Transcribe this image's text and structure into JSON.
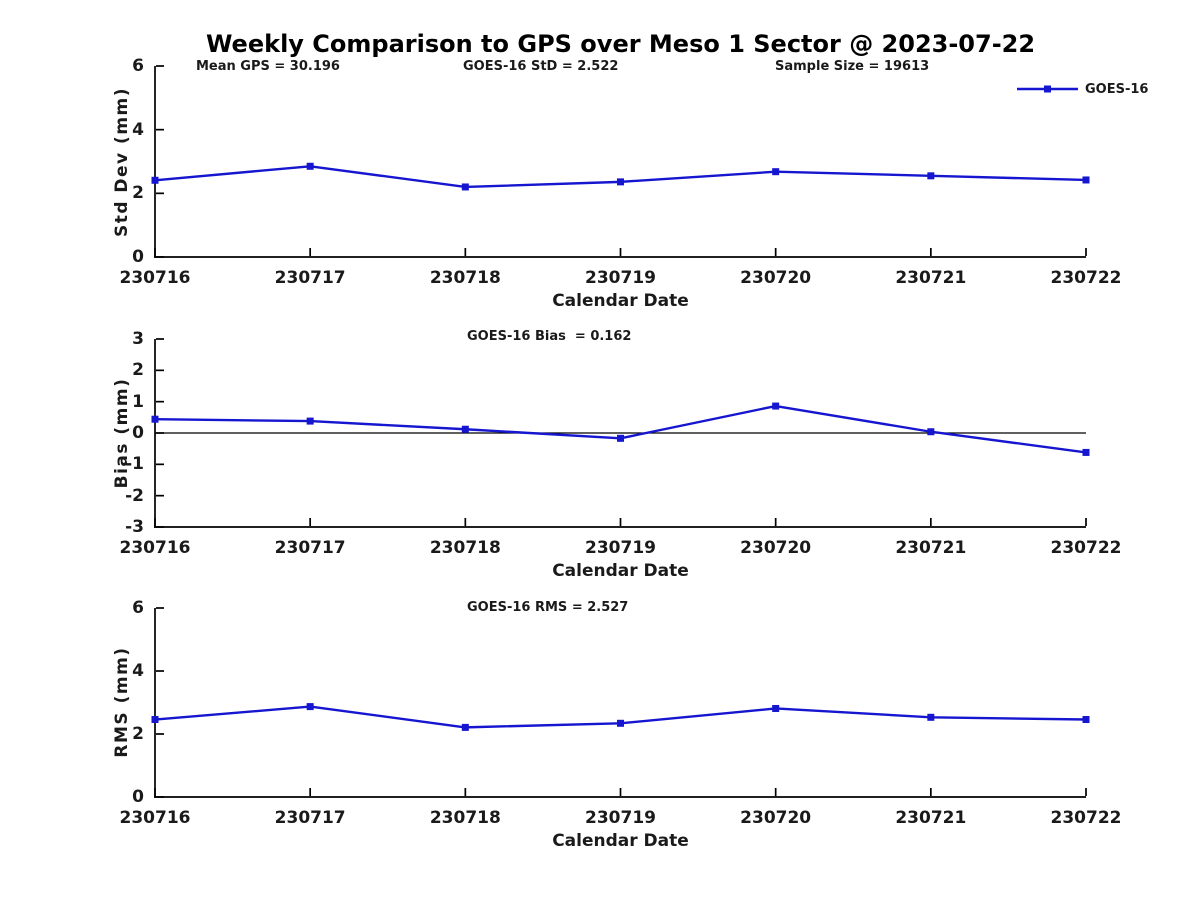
{
  "title": "Weekly Comparison to GPS over Meso 1 Sector @ 2023-07-22",
  "colors": {
    "series": "#1616d0",
    "axis": "#000000",
    "text": "#1a1a1a"
  },
  "legend": {
    "label": "GOES-16",
    "position": "top-right",
    "marker": "square"
  },
  "x_categories": [
    "230716",
    "230717",
    "230718",
    "230719",
    "230720",
    "230721",
    "230722"
  ],
  "chart_data": [
    {
      "type": "line",
      "name": "std-dev",
      "ylabel": "Std Dev (mm)",
      "xlabel": "Calendar Date",
      "ylim": [
        0,
        6
      ],
      "yticks": [
        0,
        2,
        4,
        6
      ],
      "grid": false,
      "annotations": [
        "Mean GPS = 30.196",
        "GOES-16 StD = 2.522",
        "Sample Size = 19613"
      ],
      "categories": [
        "230716",
        "230717",
        "230718",
        "230719",
        "230720",
        "230721",
        "230722"
      ],
      "series": [
        {
          "name": "GOES-16",
          "values": [
            2.41,
            2.85,
            2.2,
            2.36,
            2.68,
            2.55,
            2.42
          ]
        }
      ]
    },
    {
      "type": "line",
      "name": "bias",
      "ylabel": "Bias (mm)",
      "xlabel": "Calendar Date",
      "ylim": [
        -3,
        3
      ],
      "yticks": [
        -3,
        -2,
        -1,
        0,
        1,
        2,
        3
      ],
      "grid": false,
      "zero_line": true,
      "annotation": "GOES-16 Bias  = 0.162",
      "categories": [
        "230716",
        "230717",
        "230718",
        "230719",
        "230720",
        "230721",
        "230722"
      ],
      "series": [
        {
          "name": "GOES-16",
          "values": [
            0.44,
            0.38,
            0.12,
            -0.17,
            0.86,
            0.04,
            -0.62
          ]
        }
      ]
    },
    {
      "type": "line",
      "name": "rms",
      "ylabel": "RMS (mm)",
      "xlabel": "Calendar Date",
      "ylim": [
        0,
        6
      ],
      "yticks": [
        0,
        2,
        4,
        6
      ],
      "grid": false,
      "annotation": "GOES-16 RMS = 2.527",
      "categories": [
        "230716",
        "230717",
        "230718",
        "230719",
        "230720",
        "230721",
        "230722"
      ],
      "series": [
        {
          "name": "GOES-16",
          "values": [
            2.46,
            2.87,
            2.21,
            2.34,
            2.81,
            2.53,
            2.46
          ]
        }
      ]
    }
  ]
}
